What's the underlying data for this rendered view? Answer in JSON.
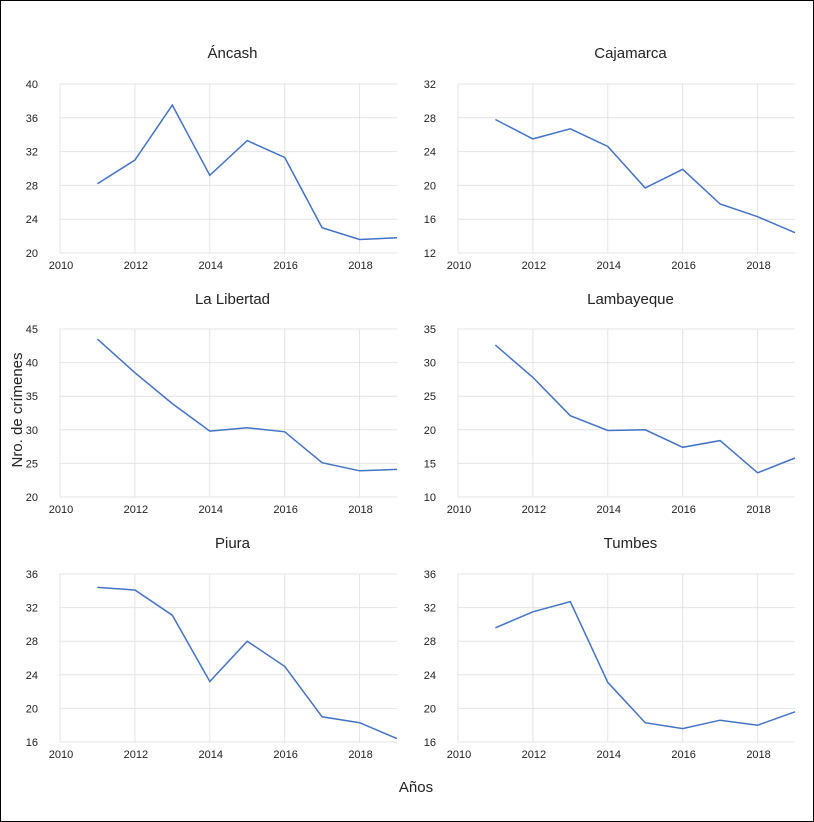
{
  "colors": {
    "line": "#4472c4",
    "grid": "#e4e4e4"
  },
  "chart_data": [
    {
      "type": "line",
      "title": "Áncash",
      "x": [
        2011,
        2012,
        2013,
        2014,
        2015,
        2016,
        2017,
        2018,
        2019
      ],
      "values": [
        28.2,
        31.0,
        37.5,
        29.2,
        33.3,
        31.3,
        23.0,
        21.6,
        21.8
      ],
      "xlim": [
        2010,
        2019
      ],
      "xticks": [
        "2010",
        "2012",
        "2014",
        "2016",
        "2018"
      ],
      "ylim": [
        20,
        40
      ],
      "yticks": [
        "20",
        "24",
        "28",
        "32",
        "36",
        "40"
      ]
    },
    {
      "type": "line",
      "title": "Cajamarca",
      "x": [
        2011,
        2012,
        2013,
        2014,
        2015,
        2016,
        2017,
        2018,
        2019
      ],
      "values": [
        27.8,
        25.5,
        26.7,
        24.6,
        19.7,
        21.9,
        17.8,
        16.3,
        14.4
      ],
      "xlim": [
        2010,
        2019
      ],
      "xticks": [
        "2010",
        "2012",
        "2014",
        "2016",
        "2018"
      ],
      "ylim": [
        12,
        32
      ],
      "yticks": [
        "12",
        "16",
        "20",
        "24",
        "28",
        "32"
      ]
    },
    {
      "type": "line",
      "title": "La Libertad",
      "x": [
        2011,
        2012,
        2013,
        2014,
        2015,
        2016,
        2017,
        2018,
        2019
      ],
      "values": [
        43.5,
        38.5,
        33.9,
        29.8,
        30.3,
        29.7,
        25.1,
        23.9,
        24.1
      ],
      "xlim": [
        2010,
        2019
      ],
      "xticks": [
        "2010",
        "2012",
        "2014",
        "2016",
        "2018"
      ],
      "ylim": [
        20,
        45
      ],
      "yticks": [
        "20",
        "25",
        "30",
        "35",
        "40",
        "45"
      ]
    },
    {
      "type": "line",
      "title": "Lambayeque",
      "x": [
        2011,
        2012,
        2013,
        2014,
        2015,
        2016,
        2017,
        2018,
        2019
      ],
      "values": [
        32.6,
        27.8,
        22.1,
        19.9,
        20.0,
        17.4,
        18.4,
        13.6,
        15.8
      ],
      "xlim": [
        2010,
        2019
      ],
      "xticks": [
        "2010",
        "2012",
        "2014",
        "2016",
        "2018"
      ],
      "ylim": [
        10,
        35
      ],
      "yticks": [
        "10",
        "15",
        "20",
        "25",
        "30",
        "35"
      ]
    },
    {
      "type": "line",
      "title": "Piura",
      "x": [
        2011,
        2012,
        2013,
        2014,
        2015,
        2016,
        2017,
        2018,
        2019
      ],
      "values": [
        34.4,
        34.1,
        31.1,
        23.2,
        28.0,
        25.0,
        19.0,
        18.3,
        16.4
      ],
      "xlim": [
        2010,
        2019
      ],
      "xticks": [
        "2010",
        "2012",
        "2014",
        "2016",
        "2018"
      ],
      "ylim": [
        16,
        36
      ],
      "yticks": [
        "16",
        "20",
        "24",
        "28",
        "32",
        "36"
      ]
    },
    {
      "type": "line",
      "title": "Tumbes",
      "x": [
        2011,
        2012,
        2013,
        2014,
        2015,
        2016,
        2017,
        2018,
        2019
      ],
      "values": [
        29.6,
        31.5,
        32.7,
        23.1,
        18.3,
        17.6,
        18.6,
        18.0,
        19.6
      ],
      "xlim": [
        2010,
        2019
      ],
      "xticks": [
        "2010",
        "2012",
        "2014",
        "2016",
        "2018"
      ],
      "ylim": [
        16,
        36
      ],
      "yticks": [
        "16",
        "20",
        "24",
        "28",
        "32",
        "36"
      ]
    }
  ],
  "xlabel": "Años",
  "ylabel": "Nro. de crímenes"
}
